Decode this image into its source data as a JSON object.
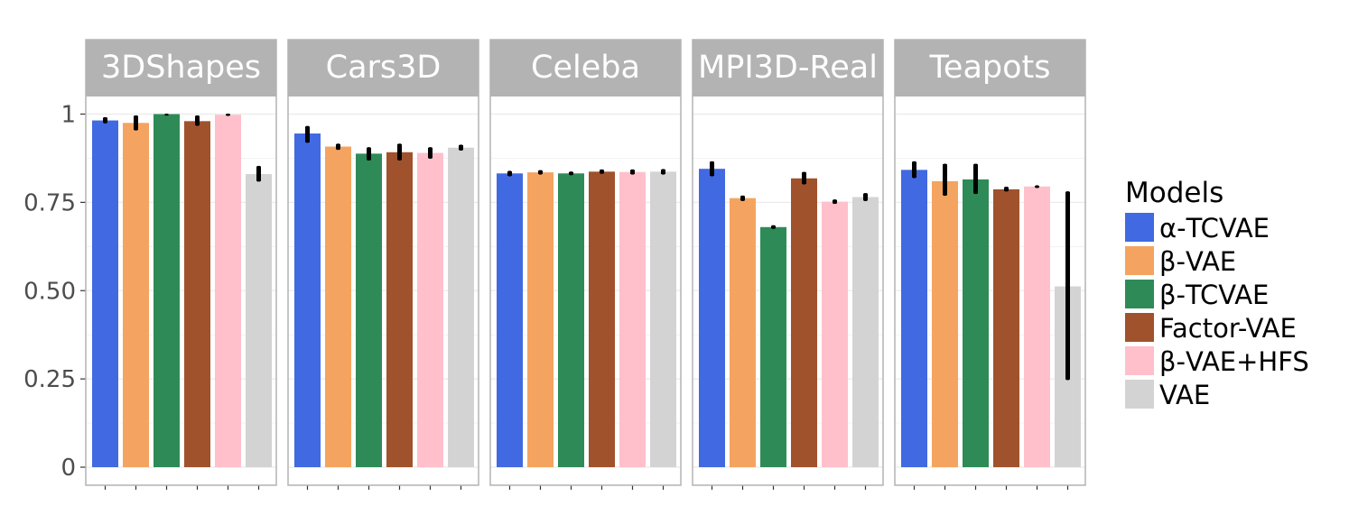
{
  "chart_data": {
    "type": "bar",
    "panels": [
      "3DShapes",
      "Cars3D",
      "Celeba",
      "MPI3D-Real",
      "Teapots"
    ],
    "models": [
      "α-TCVAE",
      "β-VAE",
      "β-TCVAE",
      "Factor-VAE",
      "β-VAE+HFS",
      "VAE"
    ],
    "colors": [
      "#4169e1",
      "#f4a460",
      "#2e8b57",
      "#a0522d",
      "#ffc0cb",
      "#d3d3d3"
    ],
    "values": [
      [
        0.982,
        0.975,
        1.0,
        0.98,
        0.998,
        0.83
      ],
      [
        0.945,
        0.908,
        0.888,
        0.892,
        0.89,
        0.905
      ],
      [
        0.832,
        0.835,
        0.832,
        0.837,
        0.836,
        0.837
      ],
      [
        0.845,
        0.762,
        0.68,
        0.818,
        0.752,
        0.765
      ],
      [
        0.842,
        0.81,
        0.815,
        0.787,
        0.795,
        0.512
      ]
    ],
    "errors": [
      [
        [
          0.975,
          0.99
        ],
        [
          0.955,
          0.995
        ],
        [
          0.997,
          1.0
        ],
        [
          0.968,
          0.995
        ],
        [
          0.996,
          1.0
        ],
        [
          0.81,
          0.852
        ]
      ],
      [
        [
          0.92,
          0.965
        ],
        [
          0.9,
          0.915
        ],
        [
          0.87,
          0.905
        ],
        [
          0.87,
          0.915
        ],
        [
          0.875,
          0.905
        ],
        [
          0.898,
          0.912
        ]
      ],
      [
        [
          0.825,
          0.838
        ],
        [
          0.83,
          0.84
        ],
        [
          0.828,
          0.836
        ],
        [
          0.832,
          0.842
        ],
        [
          0.83,
          0.842
        ],
        [
          0.83,
          0.843
        ]
      ],
      [
        [
          0.825,
          0.865
        ],
        [
          0.755,
          0.768
        ],
        [
          0.676,
          0.684
        ],
        [
          0.802,
          0.835
        ],
        [
          0.747,
          0.757
        ],
        [
          0.755,
          0.775
        ]
      ],
      [
        [
          0.82,
          0.865
        ],
        [
          0.77,
          0.858
        ],
        [
          0.775,
          0.858
        ],
        [
          0.782,
          0.793
        ],
        [
          0.792,
          0.797
        ],
        [
          0.248,
          0.78
        ]
      ]
    ],
    "y_ticks": [
      0,
      0.25,
      0.5,
      0.75,
      1
    ],
    "y_tick_labels": [
      "0",
      "0.25",
      "0.50",
      "0.75",
      "1"
    ],
    "ylim": [
      -0.01,
      1.04
    ],
    "legend_title": "Models",
    "legend_position": "right",
    "xlabel": "",
    "ylabel": "",
    "grid": true
  }
}
